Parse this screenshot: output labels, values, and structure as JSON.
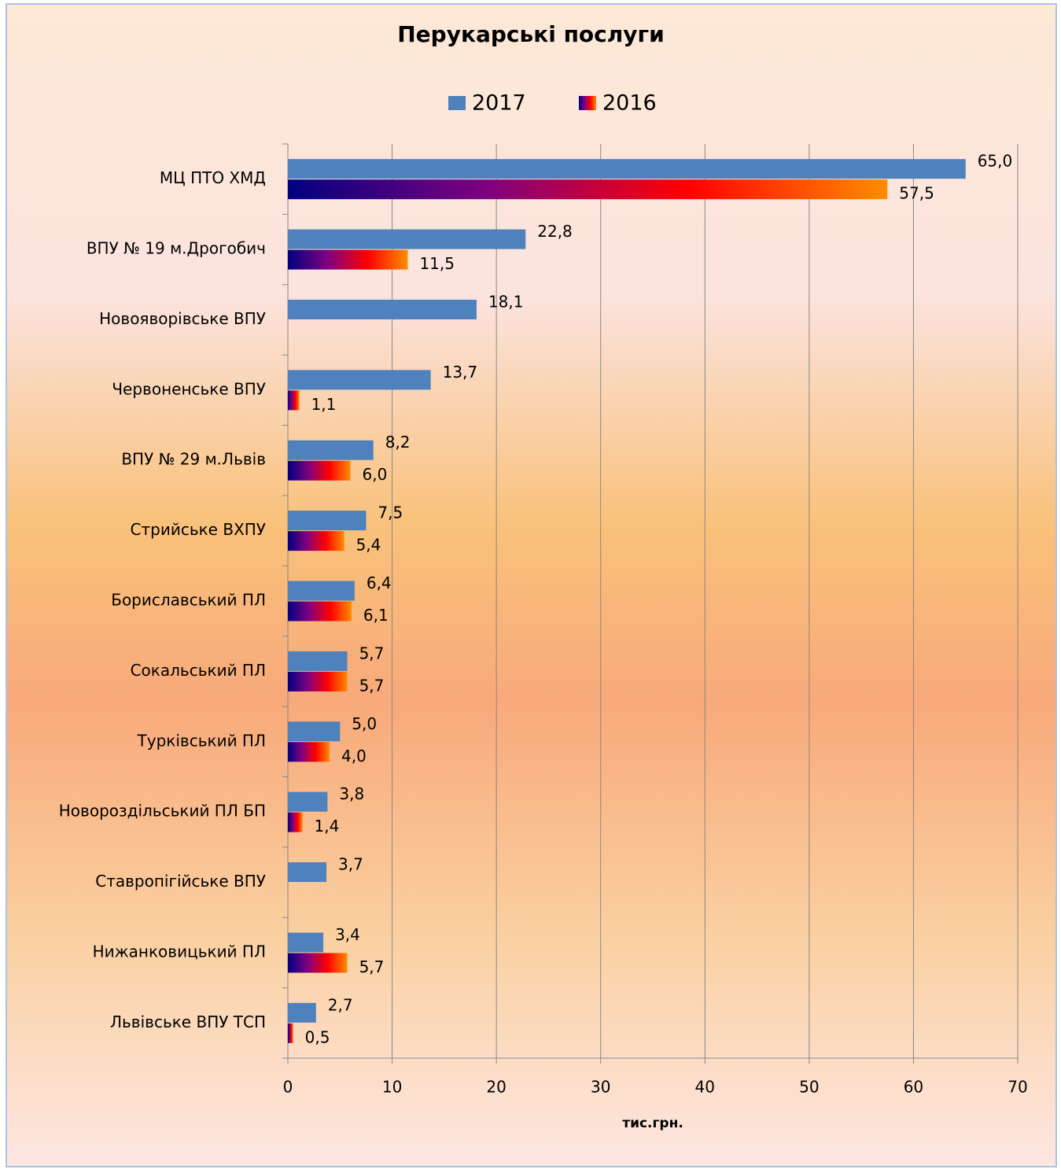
{
  "chart_data": {
    "type": "hbar",
    "title": "Перукарські послуги",
    "x_label": "тис.грн.",
    "categories": [
      "МЦ ПТО ХМД",
      "ВПУ № 19 м.Дрогобич",
      "Новояворівське ВПУ",
      "Червоненське ВПУ",
      "ВПУ № 29 м.Львів",
      "Стрийське ВХПУ",
      "Бориславський ПЛ",
      "Сокальський ПЛ",
      "Турківський ПЛ",
      "Новороздільський ПЛ БП",
      "Ставропігійське ВПУ",
      "Нижанковицький ПЛ",
      "Львівське ВПУ ТСП"
    ],
    "series": [
      {
        "name": "2017",
        "color": "#4f81bd",
        "values": [
          65.0,
          22.8,
          18.1,
          13.7,
          8.2,
          7.5,
          6.4,
          5.7,
          5.0,
          3.8,
          3.7,
          3.4,
          2.7
        ],
        "value_labels": [
          "65,0",
          "22,8",
          "18,1",
          "13,7",
          "8,2",
          "7,5",
          "6,4",
          "5,7",
          "5,0",
          "3,8",
          "3,7",
          "3,4",
          "2,7"
        ]
      },
      {
        "name": "2016",
        "gradient": [
          "#000080",
          "#800080",
          "#ff0000",
          "#ff8c00"
        ],
        "values": [
          57.5,
          11.5,
          null,
          1.1,
          6.0,
          5.4,
          6.1,
          5.7,
          4.0,
          1.4,
          null,
          5.7,
          0.5
        ],
        "value_labels": [
          "57,5",
          "11,5",
          null,
          "1,1",
          "6,0",
          "5,4",
          "6,1",
          "5,7",
          "4,0",
          "1,4",
          null,
          "5,7",
          "0,5"
        ]
      }
    ],
    "xlim": [
      0,
      70
    ],
    "xticks": [
      0,
      10,
      20,
      30,
      40,
      50,
      60,
      70
    ],
    "grid": true,
    "legend": "top"
  }
}
